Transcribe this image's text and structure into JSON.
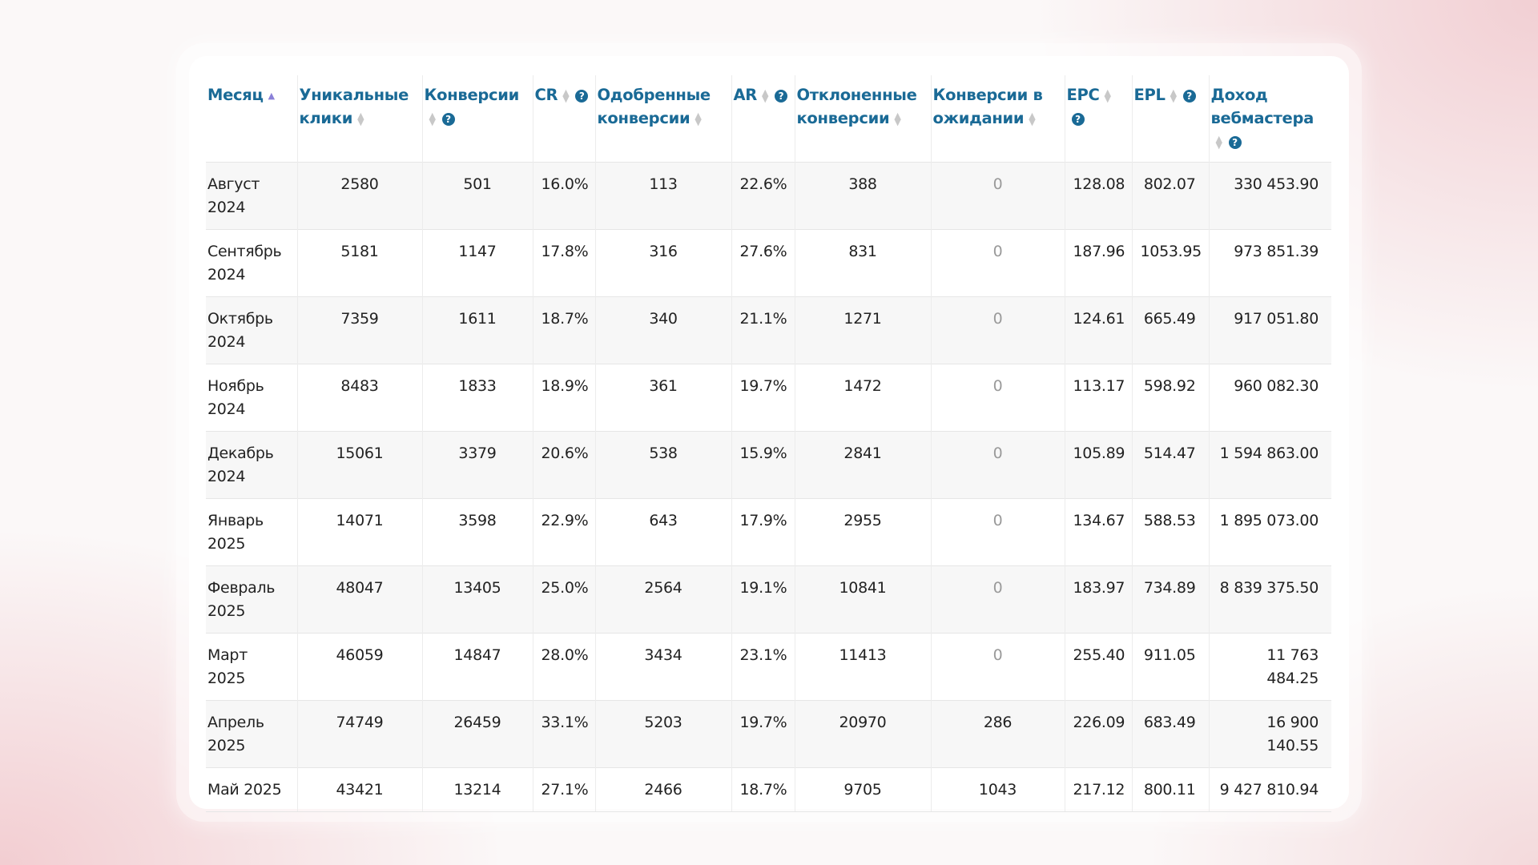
{
  "table": {
    "columns": [
      {
        "label": "Месяц",
        "sort": "asc",
        "help": false,
        "align": "l"
      },
      {
        "label": "Уникальные клики",
        "sort": "none",
        "help": false,
        "align": "c"
      },
      {
        "label": "Конверсии",
        "sort": "none",
        "help": true,
        "align": "c"
      },
      {
        "label": "CR",
        "sort": "none",
        "help": true,
        "align": "c"
      },
      {
        "label": "Одобренные конверсии",
        "sort": "none",
        "help": false,
        "align": "c"
      },
      {
        "label": "AR",
        "sort": "none",
        "help": true,
        "align": "c"
      },
      {
        "label": "Отклоненные конверсии",
        "sort": "none",
        "help": false,
        "align": "c"
      },
      {
        "label": "Конверсии в ожидании",
        "sort": "none",
        "help": false,
        "align": "c"
      },
      {
        "label": "EPC",
        "sort": "none",
        "help": true,
        "align": "r"
      },
      {
        "label": "EPL",
        "sort": "none",
        "help": true,
        "align": "r"
      },
      {
        "label": "Доход вебмастера",
        "sort": "none",
        "help": true,
        "align": "r"
      }
    ],
    "rows": [
      [
        "Август 2024",
        "2580",
        "501",
        "16.0%",
        "113",
        "22.6%",
        "388",
        "0",
        "128.08",
        "802.07",
        "330 453.90"
      ],
      [
        "Сентябрь 2024",
        "5181",
        "1147",
        "17.8%",
        "316",
        "27.6%",
        "831",
        "0",
        "187.96",
        "1053.95",
        "973 851.39"
      ],
      [
        "Октябрь 2024",
        "7359",
        "1611",
        "18.7%",
        "340",
        "21.1%",
        "1271",
        "0",
        "124.61",
        "665.49",
        "917 051.80"
      ],
      [
        "Ноябрь 2024",
        "8483",
        "1833",
        "18.9%",
        "361",
        "19.7%",
        "1472",
        "0",
        "113.17",
        "598.92",
        "960 082.30"
      ],
      [
        "Декабрь 2024",
        "15061",
        "3379",
        "20.6%",
        "538",
        "15.9%",
        "2841",
        "0",
        "105.89",
        "514.47",
        "1 594 863.00"
      ],
      [
        "Январь 2025",
        "14071",
        "3598",
        "22.9%",
        "643",
        "17.9%",
        "2955",
        "0",
        "134.67",
        "588.53",
        "1 895 073.00"
      ],
      [
        "Февраль 2025",
        "48047",
        "13405",
        "25.0%",
        "2564",
        "19.1%",
        "10841",
        "0",
        "183.97",
        "734.89",
        "8 839 375.50"
      ],
      [
        "Март 2025",
        "46059",
        "14847",
        "28.0%",
        "3434",
        "23.1%",
        "11413",
        "0",
        "255.40",
        "911.05",
        "11 763 484.25"
      ],
      [
        "Апрель 2025",
        "74749",
        "26459",
        "33.1%",
        "5203",
        "19.7%",
        "20970",
        "286",
        "226.09",
        "683.49",
        "16 900 140.55"
      ],
      [
        "Май 2025",
        "43421",
        "13214",
        "27.1%",
        "2466",
        "18.7%",
        "9705",
        "1043",
        "217.12",
        "800.11",
        "9 427 810.94"
      ]
    ],
    "help_glyph": "?",
    "colors": {
      "header": "#1a6a96",
      "sort_active": "#8a80d8",
      "muted": "#9a9a9a"
    }
  }
}
